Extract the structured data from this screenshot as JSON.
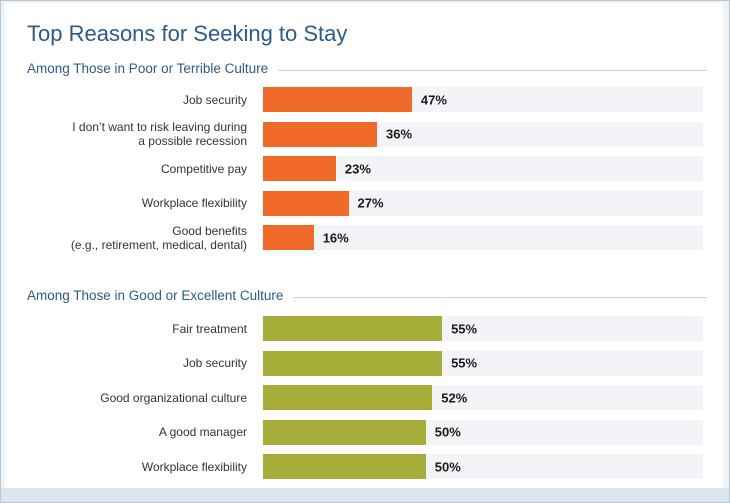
{
  "chart_data": {
    "type": "bar",
    "orientation": "horizontal",
    "title": "Top Reasons for Seeking to Stay",
    "groups": [
      {
        "name": "Among Those in Poor or Terrible Culture",
        "color": "#f26a2a",
        "items": [
          {
            "label": "Job security",
            "value": 47,
            "value_label": "47%"
          },
          {
            "label": "I don’t want to risk leaving during\na possible recession",
            "value": 36,
            "value_label": "36%"
          },
          {
            "label": "Competitive pay",
            "value": 23,
            "value_label": "23%"
          },
          {
            "label": "Workplace flexibility",
            "value": 27,
            "value_label": "27%"
          },
          {
            "label": "Good benefits\n(e.g., retirement, medical, dental)",
            "value": 16,
            "value_label": "16%"
          }
        ]
      },
      {
        "name": "Among Those in Good or Excellent Culture",
        "color": "#a6ad38",
        "items": [
          {
            "label": "Fair treatment",
            "value": 55,
            "value_label": "55%"
          },
          {
            "label": "Job security",
            "value": 55,
            "value_label": "55%"
          },
          {
            "label": "Good organizational culture",
            "value": 52,
            "value_label": "52%"
          },
          {
            "label": "A good manager",
            "value": 50,
            "value_label": "50%"
          },
          {
            "label": "Workplace flexibility",
            "value": 50,
            "value_label": "50%"
          }
        ]
      }
    ],
    "xlim": [
      0,
      100
    ],
    "grid": false,
    "legend": "none"
  }
}
